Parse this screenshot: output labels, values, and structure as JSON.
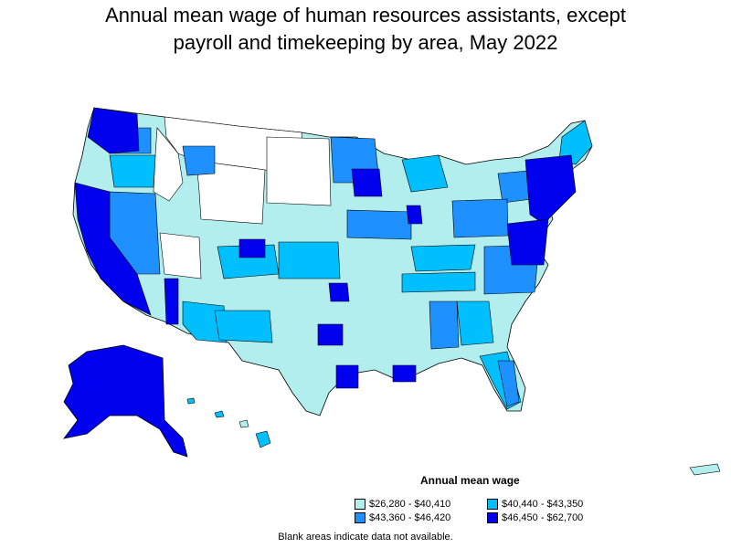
{
  "title_line1": "Annual mean wage of human resources assistants, except",
  "title_line2": "payroll and timekeeping by area, May 2022",
  "legend": {
    "title": "Annual mean wage",
    "items": [
      {
        "label": "$26,280 - $40,410",
        "color": "#b2eeee"
      },
      {
        "label": "$40,440 - $43,350",
        "color": "#00bfff"
      },
      {
        "label": "$43,360 - $46,420",
        "color": "#1e90ff"
      },
      {
        "label": "$46,450 - $62,700",
        "color": "#0000ee"
      }
    ]
  },
  "note": "Blank areas indicate data not available.",
  "colors": {
    "outline": "#000000",
    "no_data": "#ffffff"
  }
}
